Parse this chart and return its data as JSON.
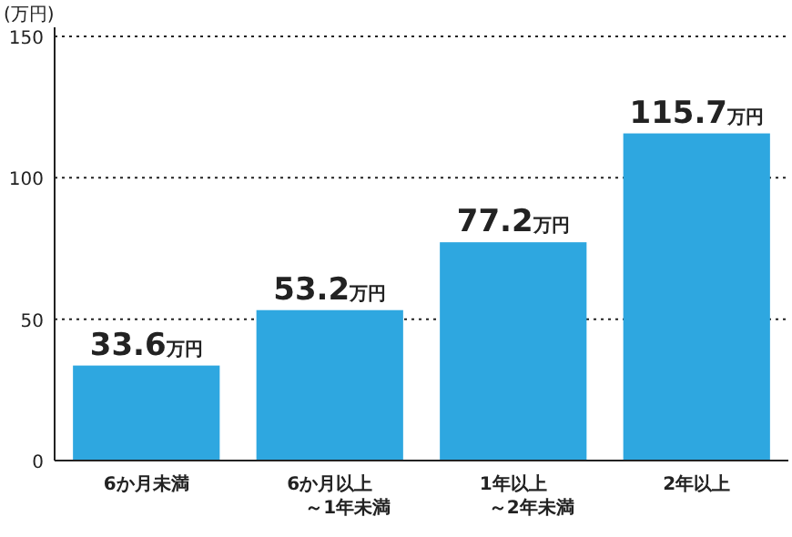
{
  "chart_data": {
    "type": "bar",
    "ylabel": "(万円)",
    "categories": [
      "6か月未満",
      "6か月以上～1年未満",
      "1年以上～2年未満",
      "2年以上"
    ],
    "values": [
      33.6,
      53.2,
      77.2,
      115.7
    ],
    "value_labels": [
      "33.6万円",
      "53.2万円",
      "77.2万円",
      "115.7万円"
    ],
    "color": "#2ea7e0",
    "ylim": [
      0,
      150
    ],
    "yticks": [
      0,
      50,
      100,
      150
    ],
    "grid": "y"
  }
}
